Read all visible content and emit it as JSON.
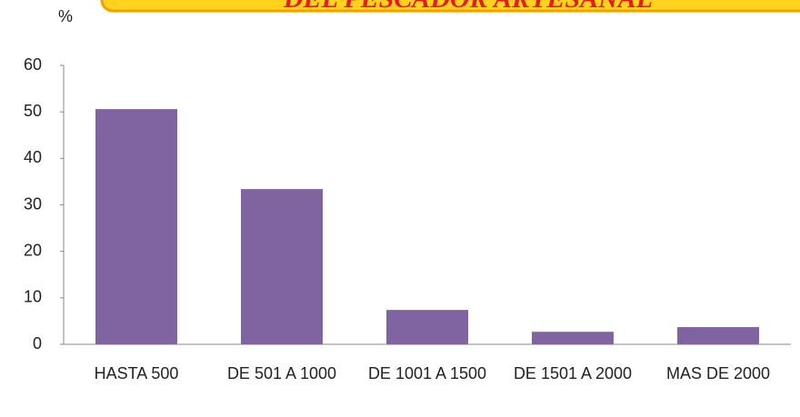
{
  "chart_data": {
    "type": "bar",
    "title": "DEL PESCADOR ARTESANAL",
    "y_label": "%",
    "categories": [
      "HASTA 500",
      "DE 501 A 1000",
      "DE 1001 A 1500",
      "DE 1501 A 2000",
      "MAS DE 2000"
    ],
    "values": [
      50.6,
      33.4,
      7.4,
      2.7,
      3.7
    ],
    "color": "#8064a2",
    "ylim": [
      0,
      60
    ],
    "yticks": [
      0,
      10,
      20,
      30,
      40,
      50,
      60
    ],
    "grid": false
  }
}
